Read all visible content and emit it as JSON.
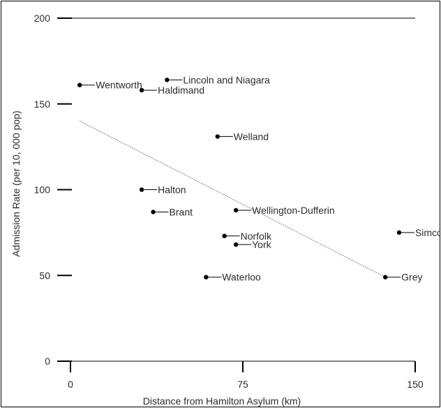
{
  "chart_data": {
    "type": "scatter",
    "title": "",
    "xlabel": "Distance from Hamilton Asylum (km)",
    "ylabel": "Admission Rate (per 10, 000 pop)",
    "xlim": [
      0,
      150
    ],
    "ylim": [
      0,
      200
    ],
    "xticks": [
      0,
      75,
      150
    ],
    "yticks": [
      0,
      50,
      100,
      150,
      200
    ],
    "grid": false,
    "legend": "none",
    "marker_color": "#000000",
    "points": [
      {
        "label": "Wentworth",
        "x": 4,
        "y": 161
      },
      {
        "label": "Lincoln and Niagara",
        "x": 42,
        "y": 164
      },
      {
        "label": "Haldimand",
        "x": 31,
        "y": 158
      },
      {
        "label": "Welland",
        "x": 64,
        "y": 131
      },
      {
        "label": "Halton",
        "x": 31,
        "y": 100
      },
      {
        "label": "Brant",
        "x": 36,
        "y": 87
      },
      {
        "label": "Wellington-Dufferin",
        "x": 72,
        "y": 88
      },
      {
        "label": "Norfolk",
        "x": 67,
        "y": 73
      },
      {
        "label": "York",
        "x": 72,
        "y": 68
      },
      {
        "label": "Simco",
        "x": 143,
        "y": 75
      },
      {
        "label": "Waterloo",
        "x": 59,
        "y": 49
      },
      {
        "label": "Grey",
        "x": 137,
        "y": 49
      }
    ],
    "trendline": {
      "x": [
        4,
        137
      ],
      "y": [
        140,
        49
      ]
    }
  }
}
